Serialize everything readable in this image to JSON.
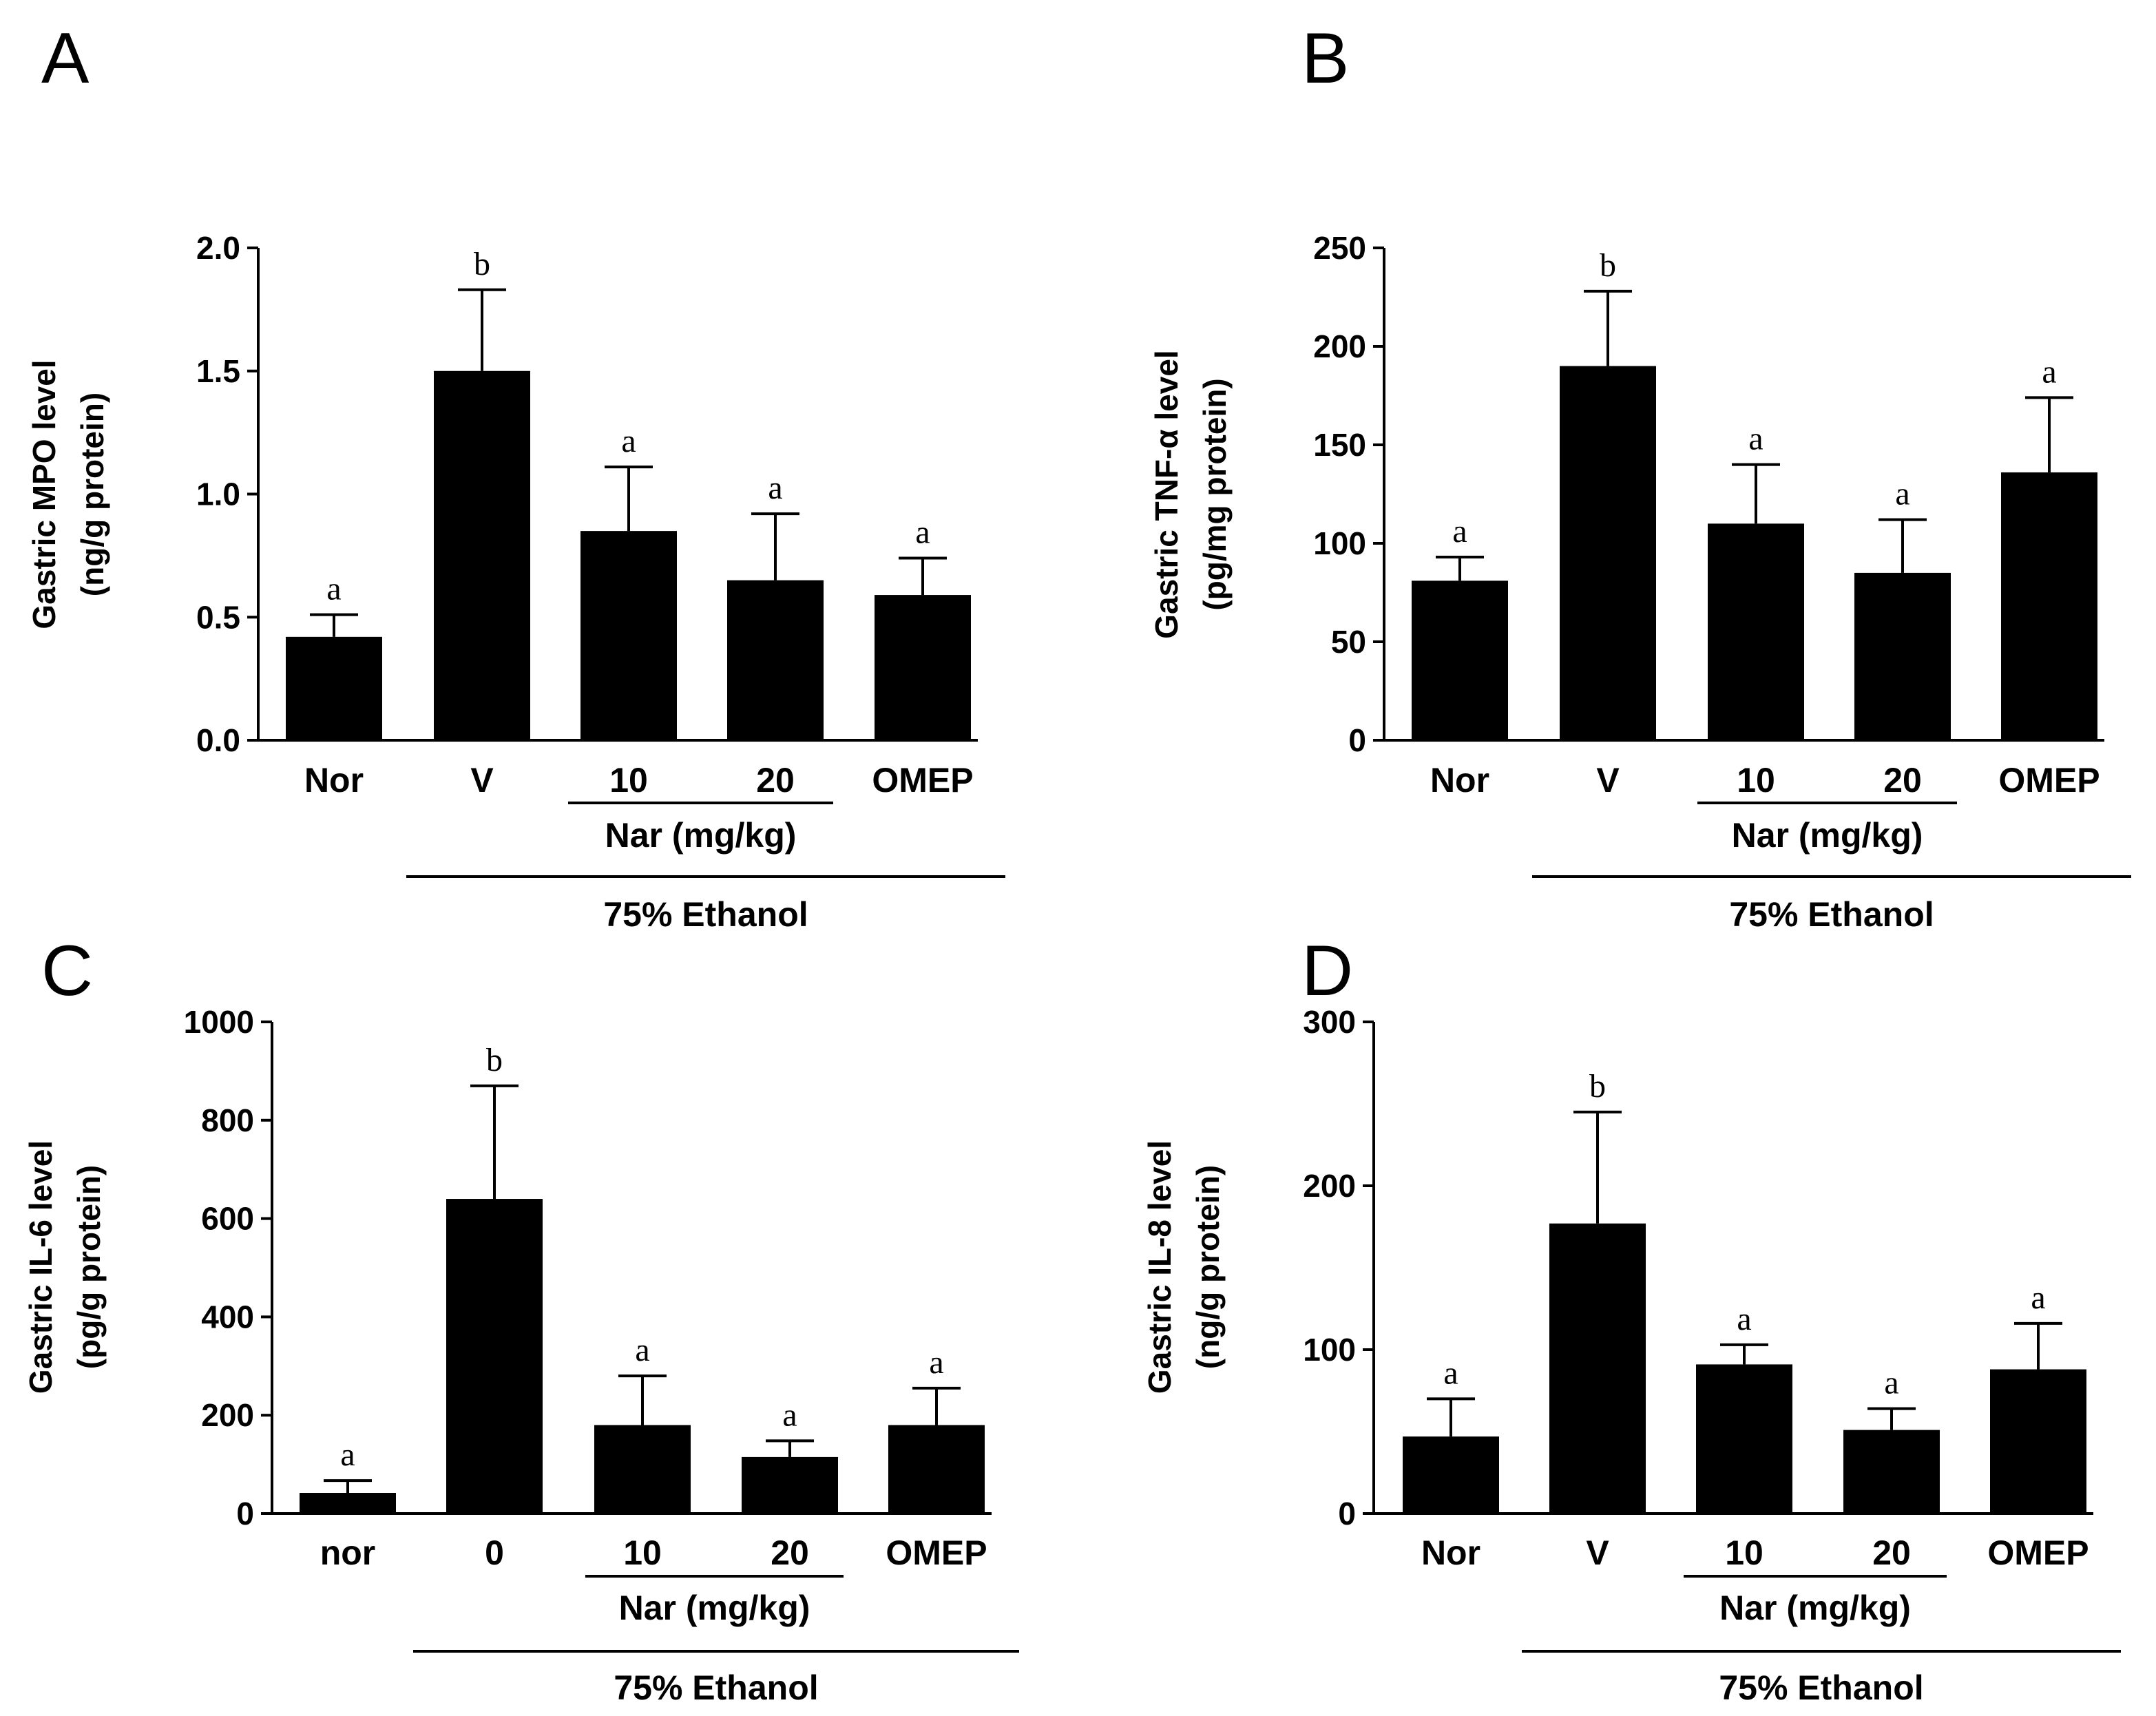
{
  "chart_data": [
    {
      "type": "bar",
      "panel_label": "A",
      "ylabel": [
        "Gastric MPO level",
        "(ng/g protein)"
      ],
      "ylim": [
        0,
        2.0
      ],
      "yticks": [
        "0.0",
        "0.5",
        "1.0",
        "1.5",
        "2.0"
      ],
      "ytick_values": [
        0,
        0.5,
        1.0,
        1.5,
        2.0
      ],
      "categories": [
        "Nor",
        "V",
        "10",
        "20",
        "OMEP"
      ],
      "values": [
        0.42,
        1.5,
        0.85,
        0.65,
        0.59
      ],
      "errors": [
        0.09,
        0.33,
        0.26,
        0.27,
        0.15
      ],
      "significance": [
        "a",
        "b",
        "a",
        "a",
        "a"
      ],
      "group_label": "Nar (mg/kg)",
      "treatment_label": "75% Ethanol"
    },
    {
      "type": "bar",
      "panel_label": "B",
      "ylabel": [
        "Gastric TNF-α level",
        "(pg/mg protein)"
      ],
      "ylim": [
        0,
        250
      ],
      "yticks": [
        "0",
        "50",
        "100",
        "150",
        "200",
        "250"
      ],
      "ytick_values": [
        0,
        50,
        100,
        150,
        200,
        250
      ],
      "categories": [
        "Nor",
        "V",
        "10",
        "20",
        "OMEP"
      ],
      "values": [
        81,
        190,
        110,
        85,
        136
      ],
      "errors": [
        12,
        38,
        30,
        27,
        38
      ],
      "significance": [
        "a",
        "b",
        "a",
        "a",
        "a"
      ],
      "group_label": "Nar (mg/kg)",
      "treatment_label": "75% Ethanol"
    },
    {
      "type": "bar",
      "panel_label": "C",
      "ylabel": [
        "Gastric IL-6 level",
        "(pg/g protein)"
      ],
      "ylim": [
        0,
        1000
      ],
      "yticks": [
        "0",
        "200",
        "400",
        "600",
        "800",
        "1000"
      ],
      "ytick_values": [
        0,
        200,
        400,
        600,
        800,
        1000
      ],
      "categories": [
        "nor",
        "0",
        "10",
        "20",
        "OMEP"
      ],
      "values": [
        42,
        640,
        180,
        115,
        180
      ],
      "errors": [
        25,
        230,
        100,
        33,
        75
      ],
      "significance": [
        "a",
        "b",
        "a",
        "a",
        "a"
      ],
      "group_label": "Nar (mg/kg)",
      "treatment_label": "75% Ethanol"
    },
    {
      "type": "bar",
      "panel_label": "D",
      "ylabel": [
        "Gastric IL-8  level",
        "(ng/g protein)"
      ],
      "ylim": [
        0,
        300
      ],
      "yticks": [
        "0",
        "100",
        "200",
        "300"
      ],
      "ytick_values": [
        0,
        100,
        200,
        300
      ],
      "categories": [
        "Nor",
        "V",
        "10",
        "20",
        "OMEP"
      ],
      "values": [
        47,
        177,
        91,
        51,
        88
      ],
      "errors": [
        23,
        68,
        12,
        13,
        28
      ],
      "significance": [
        "a",
        "b",
        "a",
        "a",
        "a"
      ],
      "group_label": "Nar (mg/kg)",
      "treatment_label": "75% Ethanol"
    }
  ]
}
